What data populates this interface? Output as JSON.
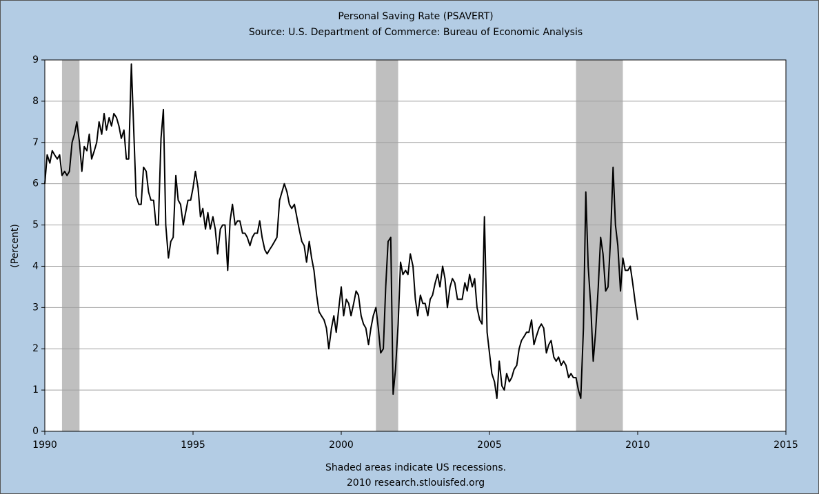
{
  "chart_data": {
    "type": "line",
    "title": "Personal Saving Rate (PSAVERT)",
    "subtitle": "Source: U.S. Department of Commerce: Bureau of Economic Analysis",
    "y_label": "(Percent)",
    "note": "Shaded areas indicate US recessions.",
    "credit": "2010 research.stlouisfed.org",
    "color": "#000000",
    "recession_color": "#bfbfbf",
    "recessions": [
      [
        1990.58,
        1991.17
      ],
      [
        2001.17,
        2001.92
      ],
      [
        2007.92,
        2009.5
      ]
    ],
    "xlim": [
      1990,
      2015
    ],
    "xticks": [
      1990,
      1995,
      2000,
      2005,
      2010,
      2015
    ],
    "ylim": [
      0,
      9
    ],
    "yticks": [
      0,
      1,
      2,
      3,
      4,
      5,
      6,
      7,
      8,
      9
    ],
    "grid": true,
    "x": [
      1990.0,
      1990.08,
      1990.17,
      1990.25,
      1990.33,
      1990.42,
      1990.5,
      1990.58,
      1990.67,
      1990.75,
      1990.83,
      1990.92,
      1991.0,
      1991.08,
      1991.17,
      1991.25,
      1991.33,
      1991.42,
      1991.5,
      1991.58,
      1991.67,
      1991.75,
      1991.83,
      1991.92,
      1992.0,
      1992.08,
      1992.17,
      1992.25,
      1992.33,
      1992.42,
      1992.5,
      1992.58,
      1992.67,
      1992.75,
      1992.83,
      1992.92,
      1993.0,
      1993.08,
      1993.17,
      1993.25,
      1993.33,
      1993.42,
      1993.5,
      1993.58,
      1993.67,
      1993.75,
      1993.83,
      1993.92,
      1994.0,
      1994.08,
      1994.17,
      1994.25,
      1994.33,
      1994.42,
      1994.5,
      1994.58,
      1994.67,
      1994.75,
      1994.83,
      1994.92,
      1995.0,
      1995.08,
      1995.17,
      1995.25,
      1995.33,
      1995.42,
      1995.5,
      1995.58,
      1995.67,
      1995.75,
      1995.83,
      1995.92,
      1996.0,
      1996.08,
      1996.17,
      1996.25,
      1996.33,
      1996.42,
      1996.5,
      1996.58,
      1996.67,
      1996.75,
      1996.83,
      1996.92,
      1997.0,
      1997.08,
      1997.17,
      1997.25,
      1997.33,
      1997.42,
      1997.5,
      1997.58,
      1997.67,
      1997.75,
      1997.83,
      1997.92,
      1998.0,
      1998.08,
      1998.17,
      1998.25,
      1998.33,
      1998.42,
      1998.5,
      1998.58,
      1998.67,
      1998.75,
      1998.83,
      1998.92,
      1999.0,
      1999.08,
      1999.17,
      1999.25,
      1999.33,
      1999.42,
      1999.5,
      1999.58,
      1999.67,
      1999.75,
      1999.83,
      1999.92,
      2000.0,
      2000.08,
      2000.17,
      2000.25,
      2000.33,
      2000.42,
      2000.5,
      2000.58,
      2000.67,
      2000.75,
      2000.83,
      2000.92,
      2001.0,
      2001.08,
      2001.17,
      2001.25,
      2001.33,
      2001.42,
      2001.5,
      2001.58,
      2001.67,
      2001.75,
      2001.83,
      2001.92,
      2002.0,
      2002.08,
      2002.17,
      2002.25,
      2002.33,
      2002.42,
      2002.5,
      2002.58,
      2002.67,
      2002.75,
      2002.83,
      2002.92,
      2003.0,
      2003.08,
      2003.17,
      2003.25,
      2003.33,
      2003.42,
      2003.5,
      2003.58,
      2003.67,
      2003.75,
      2003.83,
      2003.92,
      2004.0,
      2004.08,
      2004.17,
      2004.25,
      2004.33,
      2004.42,
      2004.5,
      2004.58,
      2004.67,
      2004.75,
      2004.83,
      2004.92,
      2005.0,
      2005.08,
      2005.17,
      2005.25,
      2005.33,
      2005.42,
      2005.5,
      2005.58,
      2005.67,
      2005.75,
      2005.83,
      2005.92,
      2006.0,
      2006.08,
      2006.17,
      2006.25,
      2006.33,
      2006.42,
      2006.5,
      2006.58,
      2006.67,
      2006.75,
      2006.83,
      2006.92,
      2007.0,
      2007.08,
      2007.17,
      2007.25,
      2007.33,
      2007.42,
      2007.5,
      2007.58,
      2007.67,
      2007.75,
      2007.83,
      2007.92,
      2008.0,
      2008.08,
      2008.17,
      2008.25,
      2008.33,
      2008.42,
      2008.5,
      2008.58,
      2008.67,
      2008.75,
      2008.83,
      2008.92,
      2009.0,
      2009.08,
      2009.17,
      2009.25,
      2009.33,
      2009.42,
      2009.5,
      2009.58,
      2009.67,
      2009.75,
      2009.83,
      2009.92,
      2010.0
    ],
    "values": [
      6.0,
      6.7,
      6.5,
      6.8,
      6.7,
      6.6,
      6.7,
      6.2,
      6.3,
      6.2,
      6.3,
      7.0,
      7.2,
      7.5,
      7.0,
      6.3,
      6.9,
      6.8,
      7.2,
      6.6,
      6.8,
      7.0,
      7.5,
      7.2,
      7.7,
      7.3,
      7.6,
      7.4,
      7.7,
      7.6,
      7.4,
      7.1,
      7.3,
      6.6,
      6.6,
      8.9,
      7.3,
      5.7,
      5.5,
      5.5,
      6.4,
      6.3,
      5.8,
      5.6,
      5.6,
      5.0,
      5.0,
      7.1,
      7.8,
      5.0,
      4.2,
      4.6,
      4.7,
      6.2,
      5.6,
      5.5,
      5.0,
      5.3,
      5.6,
      5.6,
      5.9,
      6.3,
      5.9,
      5.2,
      5.4,
      4.9,
      5.3,
      4.9,
      5.2,
      4.9,
      4.3,
      4.9,
      5.0,
      5.0,
      3.9,
      5.1,
      5.5,
      5.0,
      5.1,
      5.1,
      4.8,
      4.8,
      4.7,
      4.5,
      4.7,
      4.8,
      4.8,
      5.1,
      4.7,
      4.4,
      4.3,
      4.4,
      4.5,
      4.6,
      4.7,
      5.6,
      5.8,
      6.0,
      5.8,
      5.5,
      5.4,
      5.5,
      5.2,
      4.9,
      4.6,
      4.5,
      4.1,
      4.6,
      4.2,
      3.9,
      3.3,
      2.9,
      2.8,
      2.7,
      2.5,
      2.0,
      2.5,
      2.8,
      2.4,
      3.0,
      3.5,
      2.8,
      3.2,
      3.1,
      2.8,
      3.1,
      3.4,
      3.3,
      2.8,
      2.6,
      2.5,
      2.1,
      2.5,
      2.8,
      3.0,
      2.5,
      1.9,
      2.0,
      3.5,
      4.6,
      4.7,
      0.9,
      1.5,
      2.6,
      4.1,
      3.8,
      3.9,
      3.8,
      4.3,
      4.0,
      3.2,
      2.8,
      3.3,
      3.1,
      3.1,
      2.8,
      3.2,
      3.3,
      3.6,
      3.8,
      3.5,
      4.0,
      3.7,
      3.0,
      3.5,
      3.7,
      3.6,
      3.2,
      3.2,
      3.2,
      3.6,
      3.4,
      3.8,
      3.5,
      3.7,
      3.0,
      2.7,
      2.6,
      5.2,
      2.4,
      1.9,
      1.4,
      1.2,
      0.8,
      1.7,
      1.1,
      1.0,
      1.4,
      1.2,
      1.3,
      1.5,
      1.6,
      2.0,
      2.2,
      2.3,
      2.4,
      2.4,
      2.7,
      2.1,
      2.3,
      2.5,
      2.6,
      2.5,
      1.9,
      2.1,
      2.2,
      1.8,
      1.7,
      1.8,
      1.6,
      1.7,
      1.6,
      1.3,
      1.4,
      1.3,
      1.3,
      1.0,
      0.8,
      2.5,
      5.8,
      4.0,
      3.0,
      1.7,
      2.4,
      3.5,
      4.7,
      4.3,
      3.4,
      3.5,
      4.6,
      6.4,
      5.0,
      4.5,
      3.4,
      4.2,
      3.9,
      3.9,
      4.0,
      3.6,
      3.1,
      2.7
    ]
  }
}
